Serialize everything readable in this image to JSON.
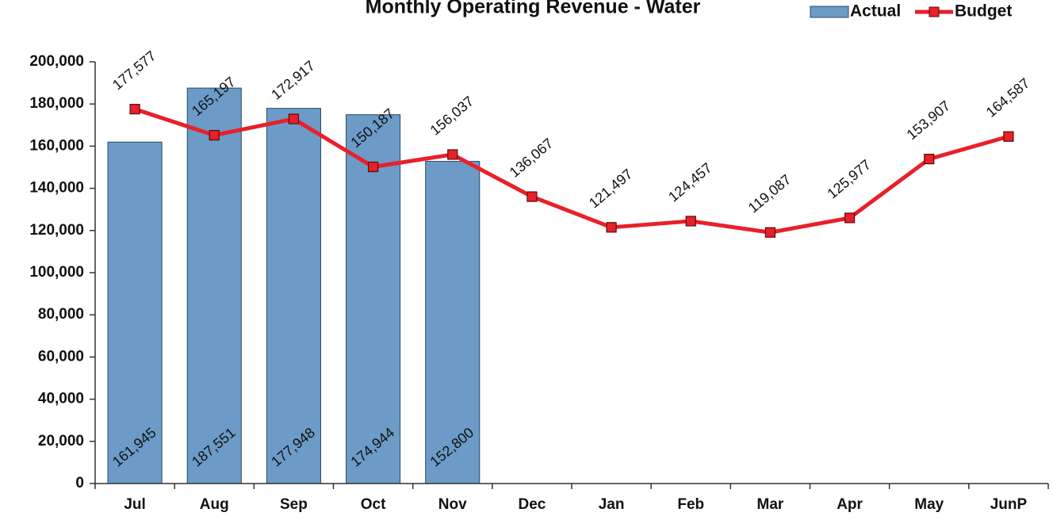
{
  "chart_data": {
    "type": "bar",
    "title": "Monthly Operating Revenue - Water",
    "categories": [
      "Jul",
      "Aug",
      "Sep",
      "Oct",
      "Nov",
      "Dec",
      "Jan",
      "Feb",
      "Mar",
      "Apr",
      "May",
      "JunP"
    ],
    "series": [
      {
        "name": "Actual",
        "type": "bar",
        "color": "#6b9bc6",
        "values": [
          161945,
          187551,
          177948,
          174944,
          152800,
          null,
          null,
          null,
          null,
          null,
          null,
          null
        ],
        "value_labels": [
          "161,945",
          "187,551",
          "177,948",
          "174,944",
          "152,800",
          null,
          null,
          null,
          null,
          null,
          null,
          null
        ]
      },
      {
        "name": "Budget",
        "type": "line",
        "color": "#e8202a",
        "values": [
          177577,
          165197,
          172917,
          150187,
          156037,
          136067,
          121497,
          124457,
          119087,
          125977,
          153907,
          164587
        ],
        "value_labels": [
          "177,577",
          "165,197",
          "172,917",
          "150,187",
          "156,037",
          "136,067",
          "121,497",
          "124,457",
          "119,087",
          "125,977",
          "153,907",
          "164,587"
        ]
      }
    ],
    "ylim": [
      0,
      200000
    ],
    "yticks": [
      0,
      {
        "value": 20000,
        "label": "20,000"
      },
      {
        "value": 40000,
        "label": "40,000"
      },
      {
        "value": 60000,
        "label": "60,000"
      },
      {
        "value": 80000,
        "label": "80,000"
      },
      {
        "value": 100000,
        "label": "100,000"
      },
      {
        "value": 120000,
        "label": "120,000"
      },
      {
        "value": 140000,
        "label": "140,000"
      },
      {
        "value": 160000,
        "label": "160,000"
      },
      {
        "value": 180000,
        "label": "180,000"
      },
      {
        "value": 200000,
        "label": "200,000"
      }
    ],
    "grid": false,
    "legend": "upper right"
  }
}
